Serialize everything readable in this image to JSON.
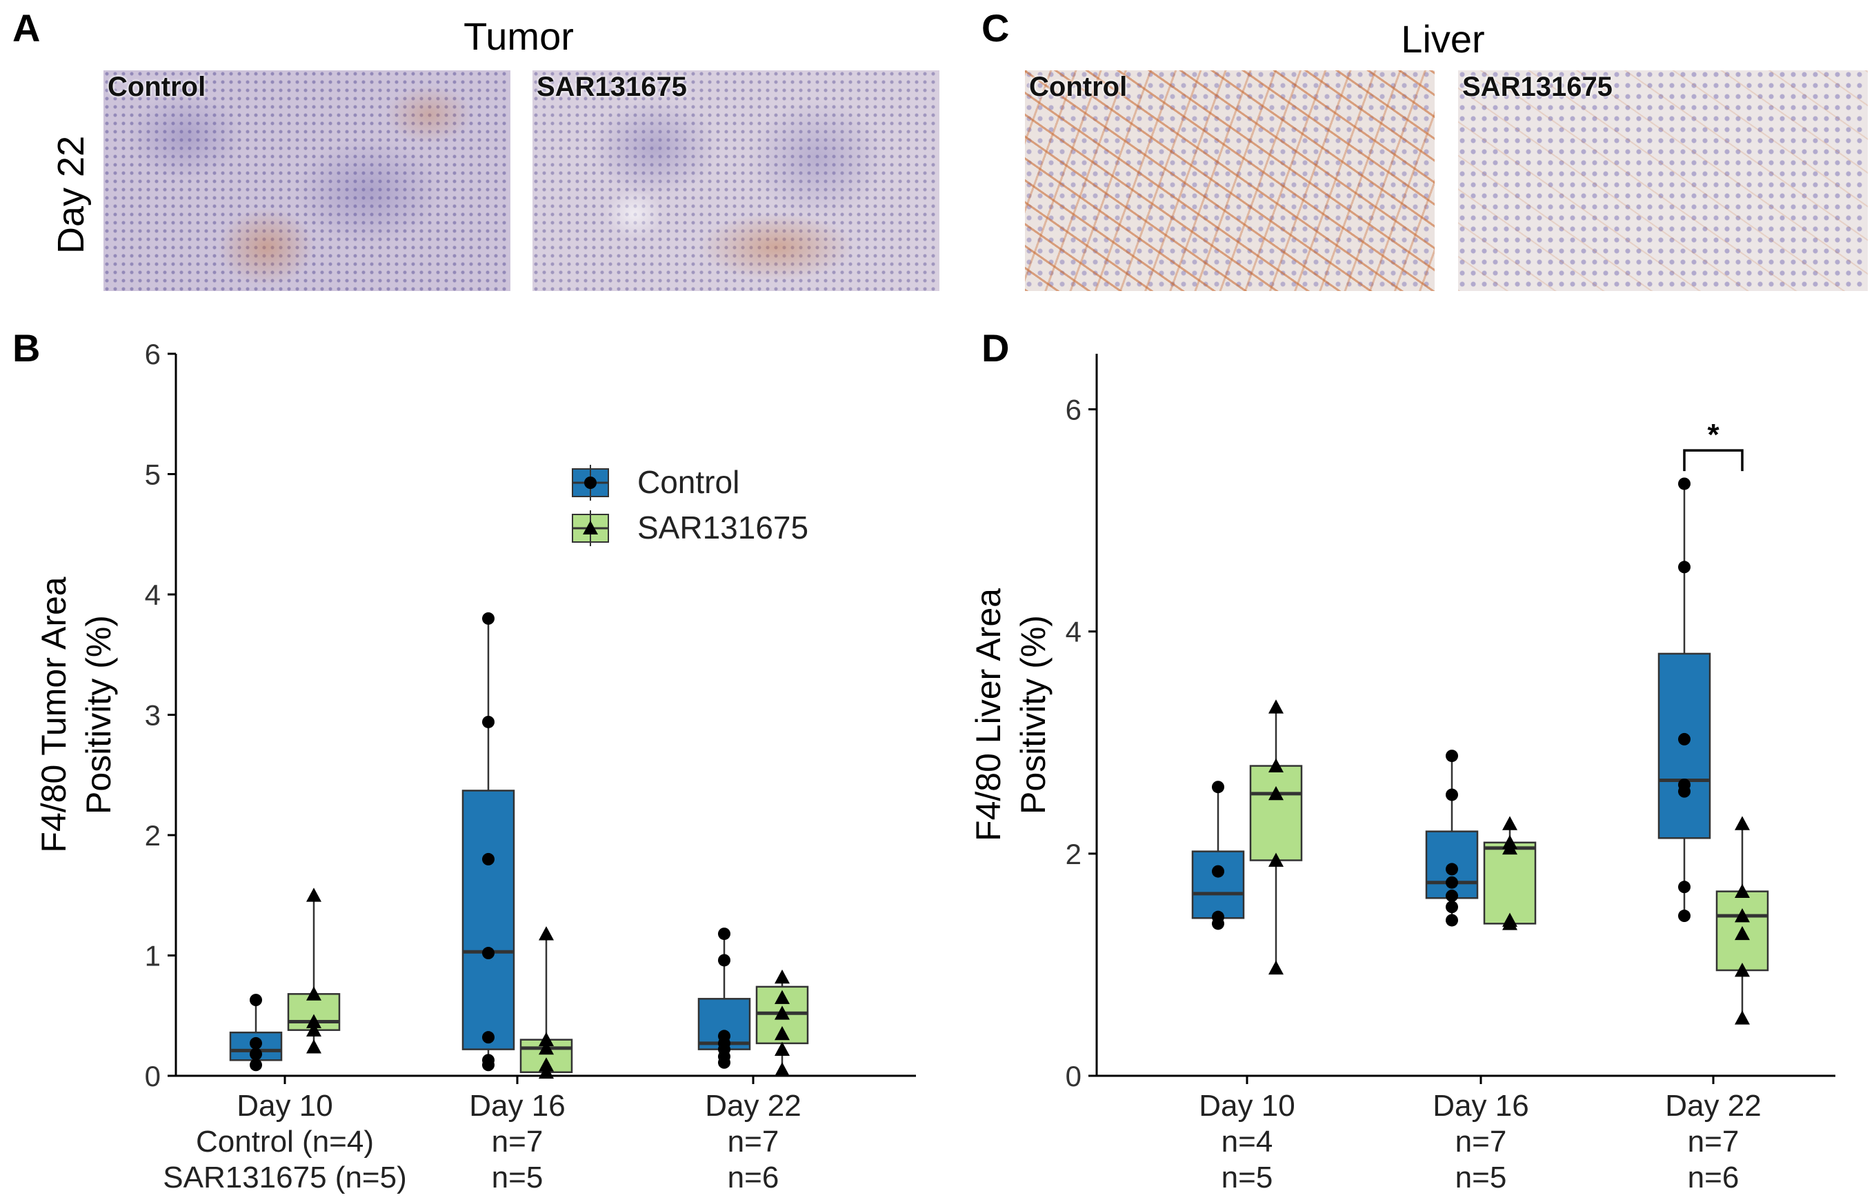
{
  "panels": {
    "a": {
      "letter": "A",
      "title": "Tumor",
      "row_label": "Day 22",
      "left_caption": "Control",
      "right_caption": "SAR131675"
    },
    "b": {
      "letter": "B"
    },
    "c": {
      "letter": "C",
      "title": "Liver",
      "left_caption": "Control",
      "right_caption": "SAR131675"
    },
    "d": {
      "letter": "D"
    }
  },
  "colors": {
    "control": "#1f77b4",
    "sar": "#b2df8a"
  },
  "chart_data": [
    {
      "id": "B",
      "type": "box",
      "ylabel_line1": "F4/80 Tumor Area",
      "ylabel_line2": "Positivity (%)",
      "ylim": [
        0,
        6
      ],
      "yticks": [
        0,
        1,
        2,
        3,
        4,
        5,
        6
      ],
      "categories": [
        "Day 10",
        "Day 16",
        "Day 22"
      ],
      "n_control": [
        "Control (n=4)",
        "n=7",
        "n=7"
      ],
      "n_sar": [
        "SAR131675 (n=5)",
        "n=5",
        "n=6"
      ],
      "legend": [
        "Control",
        "SAR131675"
      ],
      "series": [
        {
          "name": "Control",
          "marker": "circle",
          "boxes": [
            {
              "min": 0.07,
              "q1": 0.13,
              "median": 0.21,
              "q3": 0.36,
              "max": 0.63,
              "points": [
                0.63,
                0.27,
                0.18,
                0.09
              ]
            },
            {
              "min": 0.09,
              "q1": 0.22,
              "median": 1.03,
              "q3": 2.37,
              "max": 3.8,
              "points": [
                3.8,
                2.94,
                1.8,
                1.02,
                0.32,
                0.13,
                0.09
              ]
            },
            {
              "min": 0.1,
              "q1": 0.22,
              "median": 0.27,
              "q3": 0.64,
              "max": 1.18,
              "points": [
                1.18,
                0.96,
                0.33,
                0.27,
                0.22,
                0.16,
                0.11
              ]
            }
          ]
        },
        {
          "name": "SAR131675",
          "marker": "triangle",
          "boxes": [
            {
              "min": 0.24,
              "q1": 0.38,
              "median": 0.45,
              "q3": 0.68,
              "max": 1.5,
              "points": [
                1.5,
                0.68,
                0.45,
                0.38,
                0.24
              ]
            },
            {
              "min": 0.03,
              "q1": 0.03,
              "median": 0.23,
              "q3": 0.3,
              "max": 1.18,
              "points": [
                1.18,
                0.3,
                0.23,
                0.09,
                0.03
              ]
            },
            {
              "min": 0.05,
              "q1": 0.27,
              "median": 0.52,
              "q3": 0.74,
              "max": 0.82,
              "points": [
                0.82,
                0.65,
                0.52,
                0.35,
                0.22,
                0.05
              ]
            }
          ]
        }
      ]
    },
    {
      "id": "D",
      "type": "box",
      "ylabel_line1": "F4/80 Liver Area",
      "ylabel_line2": "Positivity (%)",
      "ylim": [
        0,
        6.5
      ],
      "yticks": [
        0,
        2,
        4,
        6
      ],
      "categories": [
        "Day 10",
        "Day 16",
        "Day 22"
      ],
      "n_control": [
        "n=4",
        "n=7",
        "n=7"
      ],
      "n_sar": [
        "n=5",
        "n=5",
        "n=6"
      ],
      "significance": {
        "category": "Day 22",
        "label": "*",
        "y": 5.63
      },
      "series": [
        {
          "name": "Control",
          "marker": "circle",
          "boxes": [
            {
              "min": 1.37,
              "q1": 1.42,
              "median": 1.64,
              "q3": 2.02,
              "max": 2.6,
              "points": [
                2.6,
                1.84,
                1.43,
                1.37
              ]
            },
            {
              "min": 1.4,
              "q1": 1.6,
              "median": 1.74,
              "q3": 2.2,
              "max": 2.88,
              "points": [
                2.88,
                2.53,
                1.86,
                1.74,
                1.62,
                1.52,
                1.4
              ]
            },
            {
              "min": 1.44,
              "q1": 2.14,
              "median": 2.66,
              "q3": 3.8,
              "max": 5.33,
              "points": [
                5.33,
                4.58,
                3.03,
                2.62,
                2.56,
                1.7,
                1.44
              ]
            }
          ]
        },
        {
          "name": "SAR131675",
          "marker": "triangle",
          "boxes": [
            {
              "min": 0.97,
              "q1": 1.94,
              "median": 2.54,
              "q3": 2.79,
              "max": 3.32,
              "points": [
                3.32,
                2.79,
                2.54,
                1.94,
                0.97
              ]
            },
            {
              "min": 1.37,
              "q1": 1.37,
              "median": 2.05,
              "q3": 2.1,
              "max": 2.27,
              "points": [
                2.27,
                2.1,
                2.05,
                1.4,
                1.37
              ]
            },
            {
              "min": 0.52,
              "q1": 0.95,
              "median": 1.44,
              "q3": 1.66,
              "max": 2.27,
              "points": [
                2.27,
                1.66,
                1.44,
                1.28,
                0.95,
                0.52
              ]
            }
          ]
        }
      ]
    }
  ]
}
